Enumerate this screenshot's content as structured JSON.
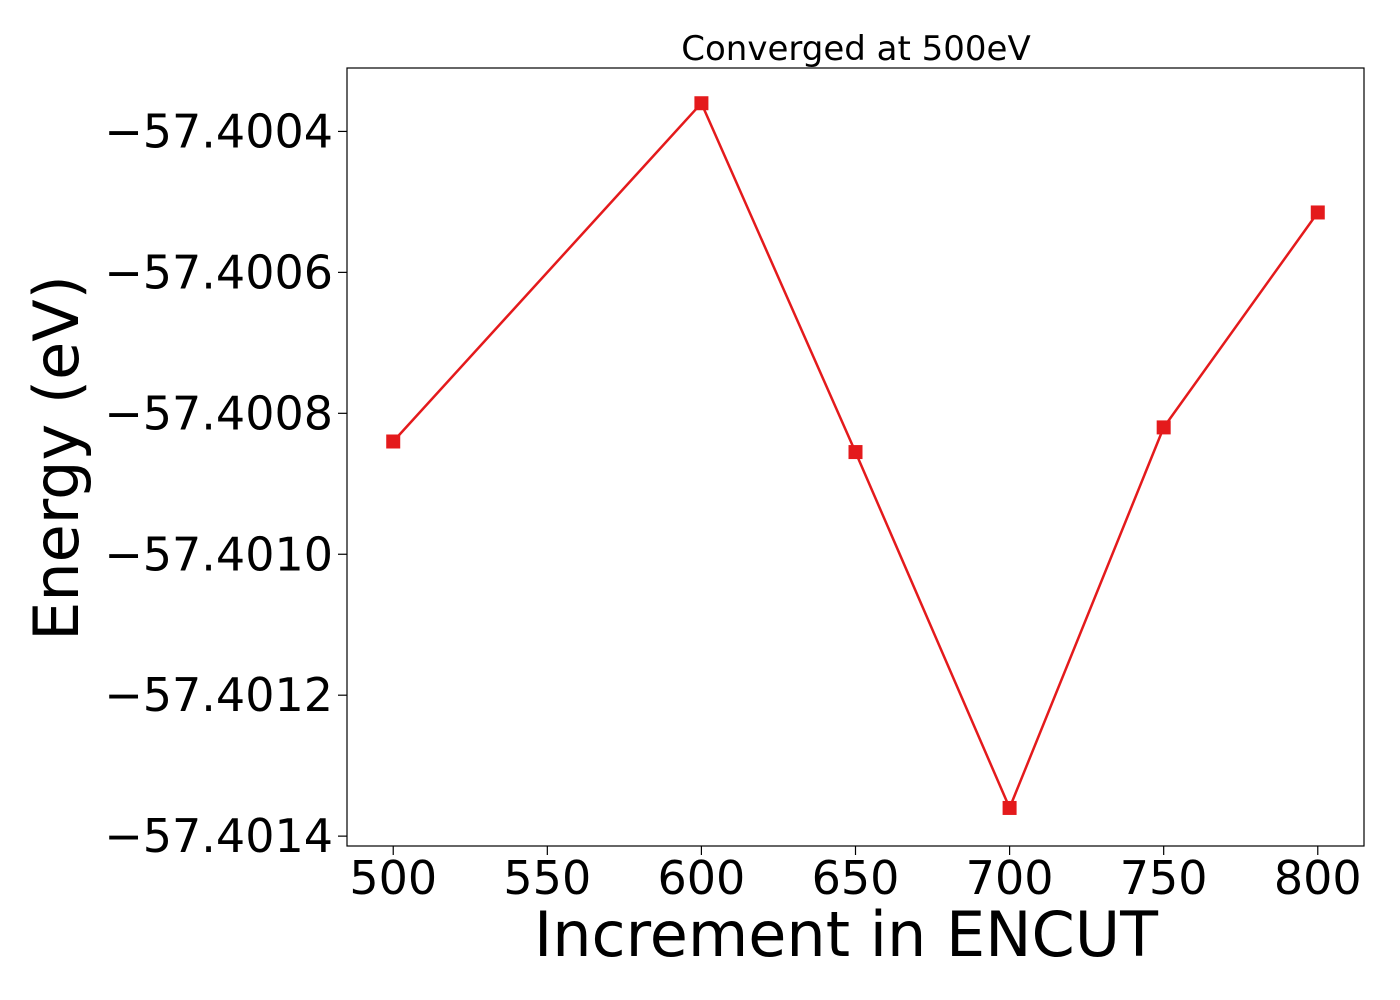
{
  "chart_data": {
    "type": "line",
    "title": "Converged at 500eV",
    "xlabel": "Increment in ENCUT",
    "ylabel": "Energy (eV)",
    "x": [
      500,
      600,
      650,
      700,
      750,
      800
    ],
    "series": [
      {
        "values": [
          -57.40084,
          -57.40036,
          -57.400855,
          -57.40136,
          -57.40082,
          -57.400515
        ],
        "color": "#e41a1c",
        "marker": "square"
      }
    ],
    "xlim": [
      485,
      815
    ],
    "ylim": [
      -57.401414,
      -57.40031
    ],
    "xticks": [
      500,
      550,
      600,
      650,
      700,
      750,
      800
    ],
    "xtick_labels": [
      "500",
      "550",
      "600",
      "650",
      "700",
      "750",
      "800"
    ],
    "yticks": [
      -57.4004,
      -57.4006,
      -57.4008,
      -57.401,
      -57.4012,
      -57.4014
    ],
    "ytick_labels": [
      "−57.4004",
      "−57.4006",
      "−57.4008",
      "−57.4010",
      "−57.4012",
      "−57.4014"
    ],
    "grid": false,
    "legend": "none"
  }
}
